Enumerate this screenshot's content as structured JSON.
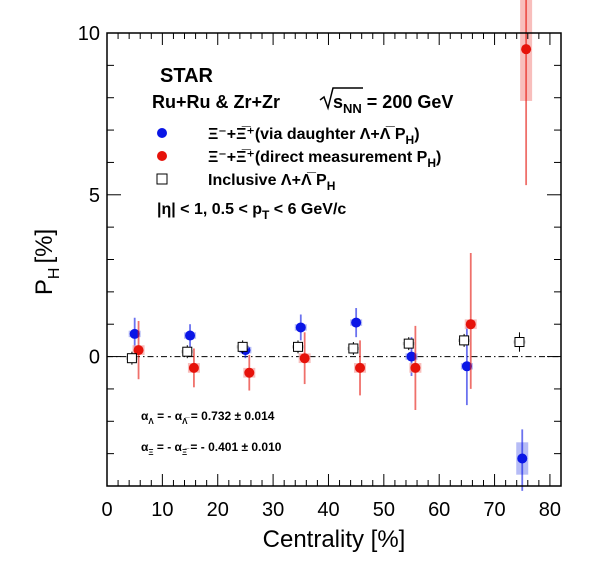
{
  "chart_data": {
    "type": "scatter",
    "title": "",
    "xlabel": "Centrality [%]",
    "ylabel": "P",
    "ylabel_sub": "H",
    "ylabel_unit": "[%]",
    "xlim": [
      0,
      82
    ],
    "ylim": [
      -4,
      10
    ],
    "xticks": [
      0,
      10,
      20,
      30,
      40,
      50,
      60,
      70,
      80
    ],
    "yticks": [
      0,
      5,
      10
    ],
    "y_minor_step": 1,
    "x_minor_step": 2,
    "grid": false,
    "reference_line": 0,
    "experiment": "STAR",
    "system": "Ru+Ru & Zr+Zr",
    "energy_symbol": "s",
    "energy_sub": "NN",
    "energy_value": " = 200 GeV",
    "kinematics": "|η| < 1, 0.5 < p",
    "kinematics_sub": "T",
    "kinematics_end": " < 6 GeV/c",
    "legend_placement": "top-left",
    "alpha_lambda": "α",
    "alpha_lambda_sub": "Λ",
    "alpha_lambda_mid": " = - α",
    "alpha_lambda_sub2": "Λ̅",
    "alpha_lambda_val": " = 0.732 ± 0.014",
    "alpha_xi": "α",
    "alpha_xi_sub": "Ξ",
    "alpha_xi_mid": " = - α",
    "alpha_xi_sub2": "Ξ̅",
    "alpha_xi_val": " = - 0.401 ± 0.010",
    "series": [
      {
        "name": "Ξ⁻+Ξ̅⁺(via daughter Λ+Λ̅ P",
        "name_sub": "H",
        "name_end": ")",
        "marker": "circle",
        "color": "#0a16e6",
        "sys_color": "#9ea6f3",
        "x": [
          5,
          15,
          25,
          35,
          45,
          55,
          65,
          75
        ],
        "y": [
          0.7,
          0.65,
          0.2,
          0.9,
          1.05,
          0.0,
          -0.3,
          -3.15
        ],
        "stat_lo": [
          0.5,
          0.35,
          0.25,
          0.4,
          0.45,
          0.6,
          1.2,
          1.0
        ],
        "stat_hi": [
          0.5,
          0.35,
          0.25,
          0.4,
          0.45,
          0.6,
          1.3,
          0.9
        ],
        "sys": [
          0.1,
          0.1,
          0.1,
          0.1,
          0.1,
          0.1,
          0.1,
          0.5
        ]
      },
      {
        "name": "Ξ⁻+Ξ̅⁺(direct measurement P",
        "name_sub": "H",
        "name_end": ")",
        "marker": "circle",
        "color": "#e6120a",
        "sys_color": "#f5a8a5",
        "x": [
          5.7,
          15.7,
          25.7,
          35.7,
          45.7,
          55.7,
          65.7,
          75.7
        ],
        "y": [
          0.2,
          -0.35,
          -0.5,
          -0.05,
          -0.35,
          -0.35,
          1.0,
          9.5
        ],
        "stat_lo": [
          0.9,
          0.6,
          0.55,
          0.8,
          0.85,
          1.3,
          2.0,
          4.2
        ],
        "stat_hi": [
          0.9,
          0.6,
          0.55,
          0.8,
          0.85,
          1.3,
          2.2,
          4.2
        ],
        "sys": [
          0.15,
          0.15,
          0.15,
          0.15,
          0.15,
          0.15,
          0.15,
          1.6
        ]
      },
      {
        "name": "Inclusive Λ+Λ̅ P",
        "name_sub": "H",
        "name_end": "",
        "marker": "open-square",
        "color": "#000000",
        "sys_color": "#bbbbbb",
        "x": [
          4.5,
          14.5,
          24.5,
          34.5,
          44.5,
          54.5,
          64.5,
          74.5
        ],
        "y": [
          -0.05,
          0.15,
          0.3,
          0.3,
          0.25,
          0.4,
          0.5,
          0.45
        ],
        "stat_lo": [
          0.2,
          0.2,
          0.2,
          0.2,
          0.2,
          0.2,
          0.2,
          0.3
        ],
        "stat_hi": [
          0.2,
          0.2,
          0.2,
          0.2,
          0.2,
          0.2,
          0.2,
          0.3
        ],
        "sys": [
          0.05,
          0.05,
          0.05,
          0.05,
          0.05,
          0.05,
          0.05,
          0.05
        ]
      }
    ]
  }
}
